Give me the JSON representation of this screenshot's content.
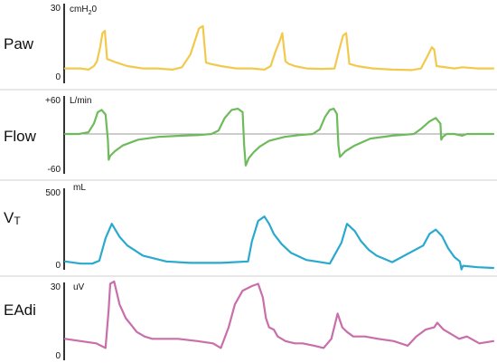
{
  "chart_data": [
    {
      "type": "line",
      "name": "Paw",
      "label": "Paw",
      "unit_main": "cmH",
      "unit_sub": "2",
      "unit_tail": "0",
      "color": "#f2c94c",
      "ylim": [
        0,
        30
      ],
      "tick_labels": [
        "30",
        "0"
      ],
      "baseline": null,
      "x": [
        0,
        20,
        30,
        37,
        41,
        45,
        48,
        51,
        54,
        66,
        80,
        100,
        118,
        138,
        150,
        161,
        167,
        172,
        177,
        181,
        186,
        200,
        220,
        240,
        256,
        264,
        270,
        276,
        279,
        283,
        287,
        295,
        310,
        330,
        346,
        352,
        357,
        361,
        365,
        375,
        395,
        420,
        445,
        457,
        465,
        471,
        474,
        477,
        500,
        510,
        530,
        550
      ],
      "y": [
        4,
        4,
        3.5,
        5,
        7,
        13,
        19,
        20,
        8,
        6.5,
        5,
        4,
        4,
        3.5,
        4.5,
        10,
        16,
        21,
        22,
        6.5,
        6,
        5,
        4,
        4,
        3.5,
        5,
        11,
        16,
        19,
        7,
        6,
        5,
        4,
        3.8,
        4,
        12,
        18,
        19,
        6,
        5,
        4,
        3.5,
        3.3,
        4,
        9,
        13,
        12,
        5,
        4,
        4.5,
        4,
        4
      ]
    },
    {
      "type": "line",
      "name": "Flow",
      "label": "Flow",
      "unit_main": "L/min",
      "color": "#6dbb5a",
      "ylim": [
        -60,
        60
      ],
      "tick_labels": [
        "+60",
        "-60"
      ],
      "baseline": 0,
      "x": [
        0,
        18,
        30,
        37,
        42,
        47,
        52,
        55,
        56,
        58,
        64,
        74,
        94,
        120,
        150,
        170,
        188,
        197,
        205,
        214,
        222,
        228,
        230,
        232,
        236,
        242,
        250,
        262,
        282,
        300,
        318,
        327,
        334,
        340,
        345,
        349,
        351,
        353,
        360,
        372,
        392,
        420,
        448,
        458,
        468,
        476,
        482,
        483,
        485,
        490,
        500,
        510,
        516,
        540,
        550
      ],
      "y": [
        0,
        0,
        3,
        18,
        38,
        42,
        34,
        -10,
        -45,
        -38,
        -30,
        -20,
        -10,
        -5,
        -3,
        -2,
        0,
        6,
        28,
        42,
        44,
        38,
        -20,
        -55,
        -42,
        -32,
        -22,
        -12,
        -5,
        -2,
        0,
        8,
        30,
        42,
        44,
        35,
        -20,
        -40,
        -30,
        -20,
        -8,
        -3,
        0,
        10,
        22,
        28,
        18,
        -10,
        -5,
        0,
        0,
        -3,
        0,
        0,
        0
      ]
    },
    {
      "type": "line",
      "name": "VT",
      "label_main": "V",
      "label_sub": "T",
      "unit_main": "mL",
      "color": "#2aa9cf",
      "ylim": [
        0,
        500
      ],
      "tick_labels": [
        "500",
        "0"
      ],
      "baseline": null,
      "x": [
        0,
        20,
        35,
        44,
        52,
        60,
        70,
        80,
        100,
        130,
        160,
        200,
        235,
        240,
        248,
        256,
        262,
        268,
        278,
        290,
        310,
        340,
        355,
        362,
        372,
        380,
        390,
        400,
        420,
        460,
        468,
        476,
        484,
        492,
        500,
        507,
        509,
        511,
        530,
        550
      ],
      "y": [
        20,
        5,
        5,
        25,
        180,
        280,
        190,
        130,
        60,
        20,
        10,
        10,
        20,
        160,
        300,
        330,
        280,
        210,
        140,
        80,
        30,
        5,
        150,
        280,
        230,
        160,
        100,
        60,
        15,
        130,
        210,
        240,
        195,
        110,
        50,
        20,
        -35,
        -10,
        -20,
        -25
      ]
    },
    {
      "type": "line",
      "name": "EAdi",
      "label": "EAdi",
      "unit_main": "uV",
      "color": "#c96eaa",
      "ylim": [
        0,
        30
      ],
      "tick_labels": [
        "30",
        "0"
      ],
      "baseline": null,
      "x": [
        0,
        20,
        40,
        52,
        56,
        58,
        63,
        70,
        78,
        85,
        92,
        102,
        112,
        125,
        145,
        170,
        190,
        200,
        210,
        218,
        228,
        240,
        248,
        254,
        258,
        262,
        268,
        273,
        283,
        295,
        305,
        320,
        332,
        342,
        347,
        350,
        353,
        356,
        362,
        370,
        385,
        402,
        422,
        440,
        451,
        463,
        474,
        478,
        486,
        496,
        506,
        516,
        532,
        550
      ],
      "y": [
        7,
        6,
        5,
        3,
        20,
        31,
        32,
        22,
        16,
        13,
        10,
        8,
        7,
        7,
        7,
        6,
        5,
        3,
        12,
        22,
        28,
        30,
        31,
        25,
        16,
        12,
        11,
        8,
        6,
        5,
        5,
        4,
        3,
        7,
        14,
        18,
        15,
        12,
        10,
        8,
        8,
        7,
        6,
        4,
        8,
        11,
        12,
        14,
        11,
        9,
        7,
        8,
        5,
        6
      ]
    }
  ]
}
